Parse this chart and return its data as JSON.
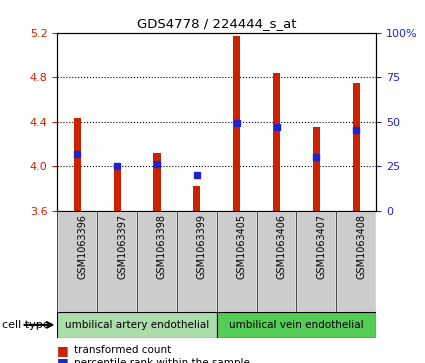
{
  "title": "GDS4778 / 224444_s_at",
  "samples": [
    "GSM1063396",
    "GSM1063397",
    "GSM1063398",
    "GSM1063399",
    "GSM1063405",
    "GSM1063406",
    "GSM1063407",
    "GSM1063408"
  ],
  "transformed_counts": [
    4.43,
    3.97,
    4.12,
    3.82,
    5.17,
    4.84,
    4.35,
    4.75
  ],
  "percentile_ranks": [
    32,
    25,
    26,
    20,
    49,
    47,
    30,
    45
  ],
  "ylim": [
    3.6,
    5.2
  ],
  "yticks": [
    3.6,
    4.0,
    4.4,
    4.8,
    5.2
  ],
  "right_yticks": [
    0,
    25,
    50,
    75,
    100
  ],
  "bar_color": "#cc2200",
  "percentile_color": "#2222cc",
  "cell_type_groups": [
    {
      "label": "umbilical artery endothelial",
      "start": 0,
      "end": 4,
      "color": "#aaddaa"
    },
    {
      "label": "umbilical vein endothelial",
      "start": 4,
      "end": 8,
      "color": "#55cc55"
    }
  ],
  "cell_type_label": "cell type",
  "legend_items": [
    {
      "label": "transformed count",
      "color": "#cc2200"
    },
    {
      "label": "percentile rank within the sample",
      "color": "#2222cc"
    }
  ],
  "bar_width": 0.18,
  "left_tick_color": "#cc2200",
  "right_tick_color": "#2222cc",
  "xtick_bg": "#cccccc",
  "grid_color": "black"
}
